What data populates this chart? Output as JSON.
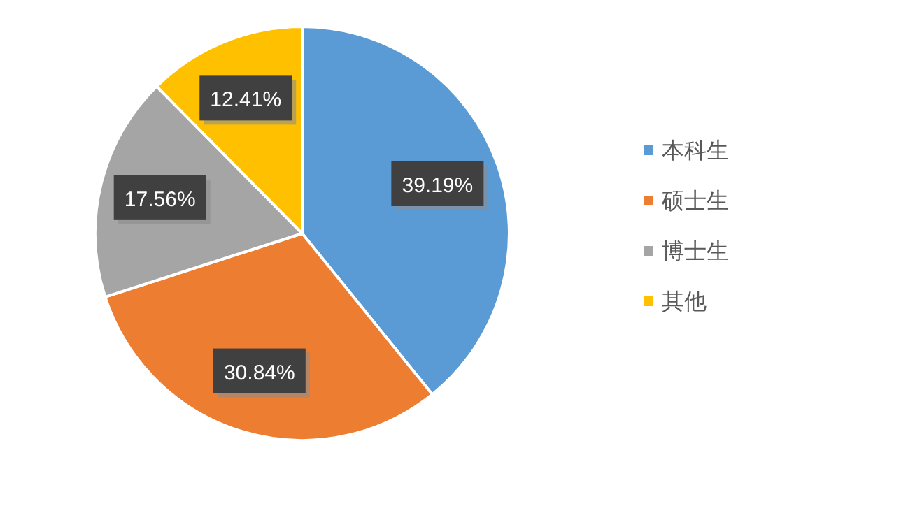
{
  "chart_data": {
    "type": "pie",
    "categories": [
      "本科生",
      "硕士生",
      "博士生",
      "其他"
    ],
    "values": [
      39.19,
      30.84,
      17.56,
      12.41
    ],
    "colors": [
      "#5b9bd5",
      "#ed7d31",
      "#a5a5a5",
      "#ffc000"
    ],
    "value_labels": [
      "39.19%",
      "30.84%",
      "17.56%",
      "12.41%"
    ],
    "legend": "right"
  }
}
